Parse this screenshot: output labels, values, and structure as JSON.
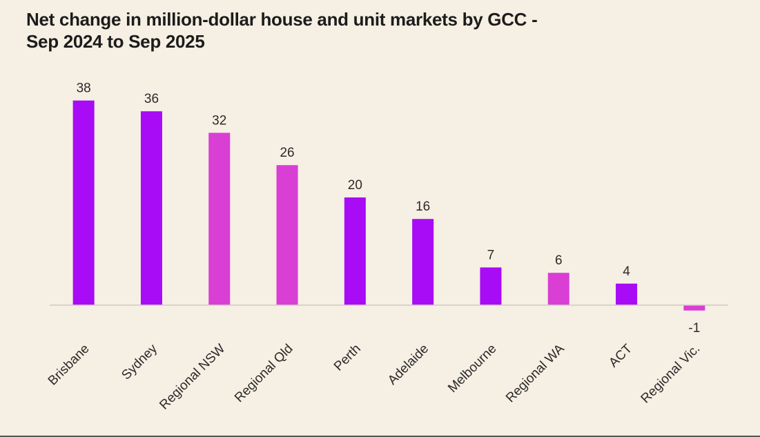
{
  "title": "Net change in million-dollar house and unit markets by GCC -\nSep 2024 to Sep 2025",
  "chart_data": {
    "type": "bar",
    "title": "Net change in million-dollar house and unit markets by GCC - Sep 2024 to Sep 2025",
    "xlabel": "",
    "ylabel": "",
    "categories": [
      "Brisbane",
      "Sydney",
      "Regional NSW",
      "Regional Qld",
      "Perth",
      "Adelaide",
      "Melbourne",
      "Regional WA",
      "ACT",
      "Regional Vic."
    ],
    "values": [
      38,
      36,
      32,
      26,
      20,
      16,
      7,
      6,
      4,
      -1
    ],
    "value_labels": [
      "38",
      "36",
      "32",
      "26",
      "20",
      "16",
      "7",
      "6",
      "4",
      "-1"
    ],
    "bar_colors": [
      "#a80bf5",
      "#a80bf5",
      "#d93ed5",
      "#d93ed5",
      "#a80bf5",
      "#a80bf5",
      "#a80bf5",
      "#d93ed5",
      "#a80bf5",
      "#d93ed5"
    ],
    "ylim": [
      -1,
      38
    ],
    "grid": false,
    "legend": "none"
  },
  "colors": {
    "background": "#f6efe3",
    "capital_city": "#a80bf5",
    "regional": "#d93ed5",
    "baseline": "#cfcac3",
    "text": "#1c1c1c"
  }
}
